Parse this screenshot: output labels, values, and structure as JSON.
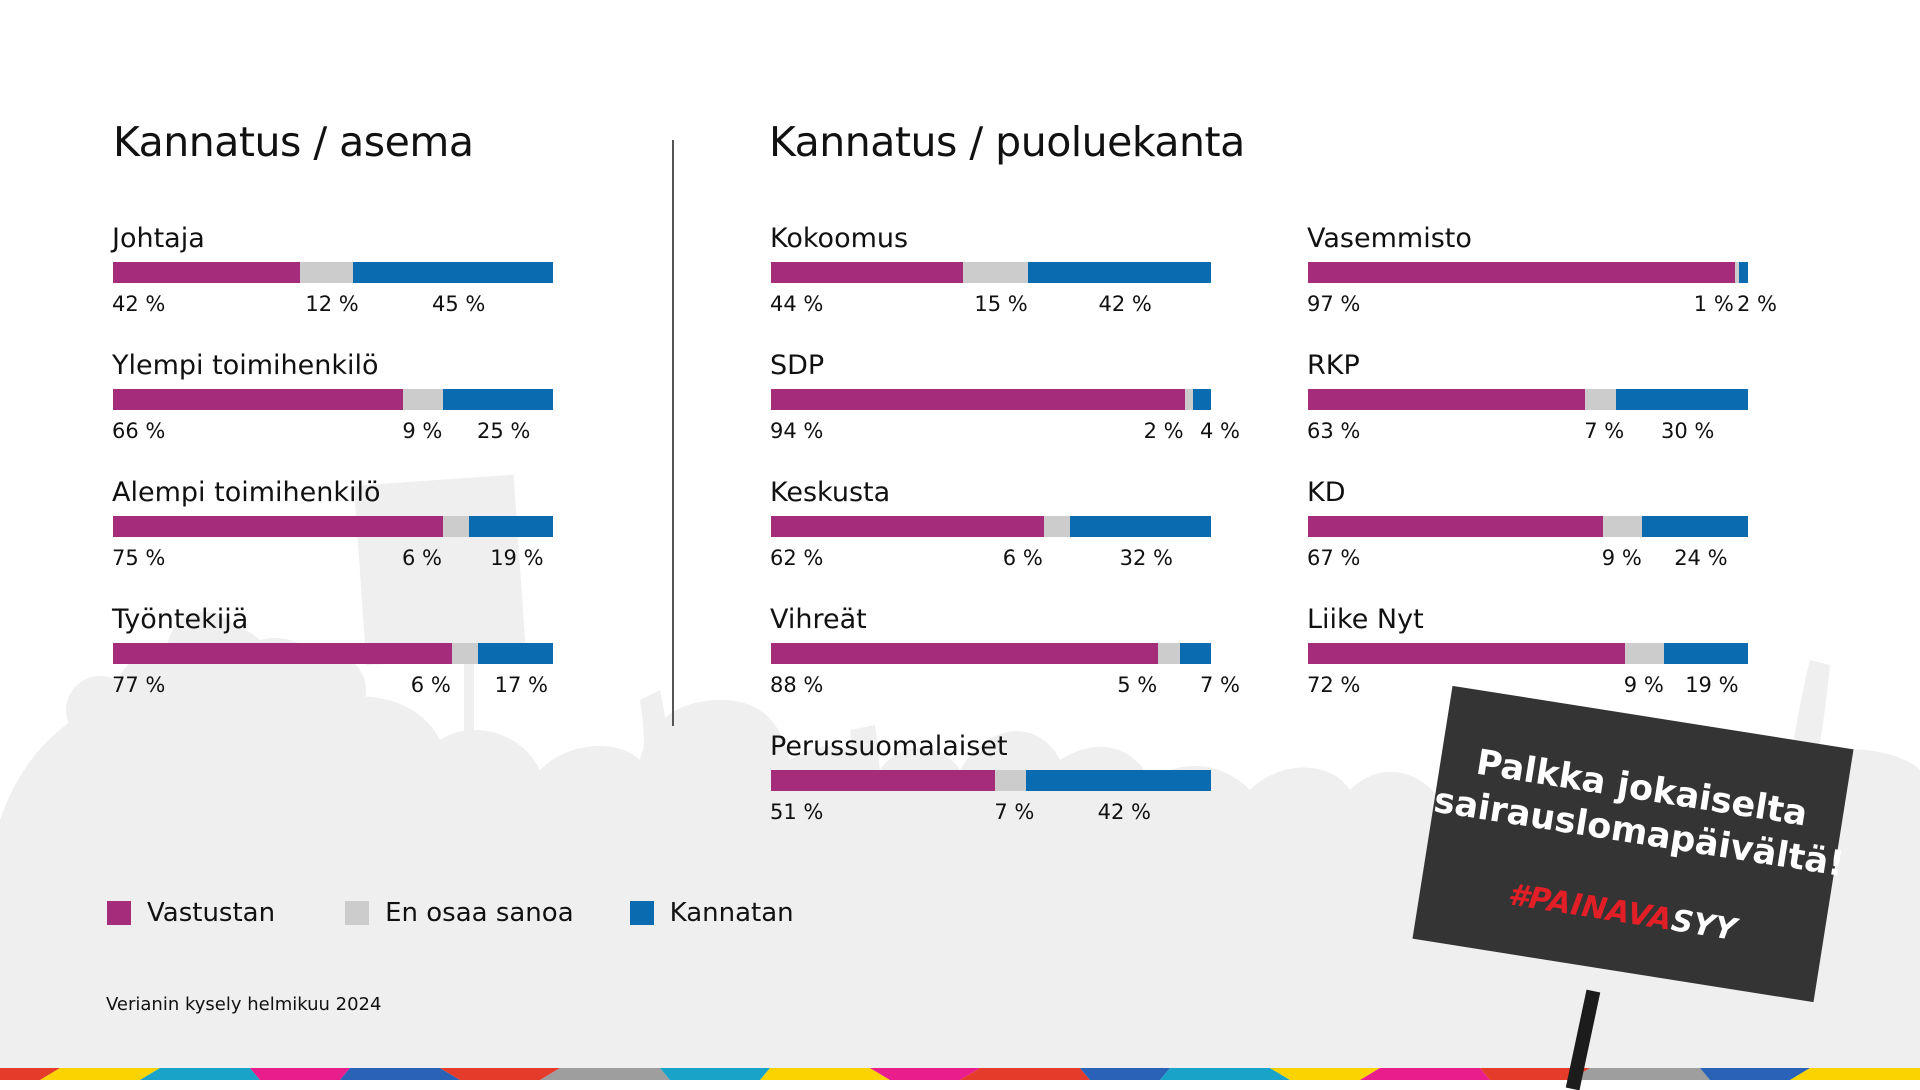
{
  "titles": {
    "left": "Kannatus / asema",
    "right": "Kannatus / puoluekanta"
  },
  "colors": {
    "vastustan": "#a52c7b",
    "en_osaa": "#cccccc",
    "kannatan": "#0b6bb0"
  },
  "chart_data": [
    {
      "type": "bar",
      "stacked": true,
      "orientation": "horizontal",
      "title": "Kannatus / asema",
      "categories": [
        "Johtaja",
        "Ylempi toimihenkilö",
        "Alempi toimihenkilö",
        "Työntekijä"
      ],
      "series": [
        {
          "name": "Vastustan",
          "values": [
            42,
            66,
            75,
            77
          ]
        },
        {
          "name": "En osaa sanoa",
          "values": [
            12,
            9,
            6,
            6
          ]
        },
        {
          "name": "Kannatan",
          "values": [
            45,
            25,
            19,
            17
          ]
        }
      ],
      "labels": [
        [
          "42 %",
          "12 %",
          "45 %"
        ],
        [
          "66 %",
          "9 %",
          "25 %"
        ],
        [
          "75 %",
          "6 %",
          "19 %"
        ],
        [
          "77 %",
          "6 %",
          "17 %"
        ]
      ],
      "unit": "%"
    },
    {
      "type": "bar",
      "stacked": true,
      "orientation": "horizontal",
      "title": "Kannatus / puoluekanta",
      "categories": [
        "Kokoomus",
        "SDP",
        "Keskusta",
        "Vihreät",
        "Perussuomalaiset",
        "Vasemmisto",
        "RKP",
        "KD",
        "Liike Nyt"
      ],
      "series": [
        {
          "name": "Vastustan",
          "values": [
            44,
            94,
            62,
            88,
            51,
            97,
            63,
            67,
            72
          ]
        },
        {
          "name": "En osaa sanoa",
          "values": [
            15,
            2,
            6,
            5,
            7,
            1,
            7,
            9,
            9
          ]
        },
        {
          "name": "Kannatan",
          "values": [
            42,
            4,
            32,
            7,
            42,
            2,
            30,
            24,
            19
          ]
        }
      ],
      "labels": [
        [
          "44 %",
          "15 %",
          "42 %"
        ],
        [
          "94 %",
          "2 %",
          "4 %"
        ],
        [
          "62 %",
          "6 %",
          "32 %"
        ],
        [
          "88 %",
          "5 %",
          "7 %"
        ],
        [
          "51 %",
          "7 %",
          "42 %"
        ],
        [
          "97 %",
          "1 %",
          "2 %"
        ],
        [
          "63 %",
          "7 %",
          "30 %"
        ],
        [
          "67 %",
          "9 %",
          "24 %"
        ],
        [
          "72 %",
          "9 %",
          "19 %"
        ]
      ],
      "unit": "%"
    }
  ],
  "legend": [
    {
      "label": "Vastustan",
      "color": "#a52c7b"
    },
    {
      "label": "En osaa sanoa",
      "color": "#cccccc"
    },
    {
      "label": "Kannatan",
      "color": "#0b6bb0"
    }
  ],
  "source": "Verianin kysely helmikuu 2024",
  "sign": {
    "line1": "Palkka jokaiselta",
    "line2": "sairauslomapäivältä!",
    "hashtag_a": "#PAINAVA",
    "hashtag_b": "SYY"
  }
}
